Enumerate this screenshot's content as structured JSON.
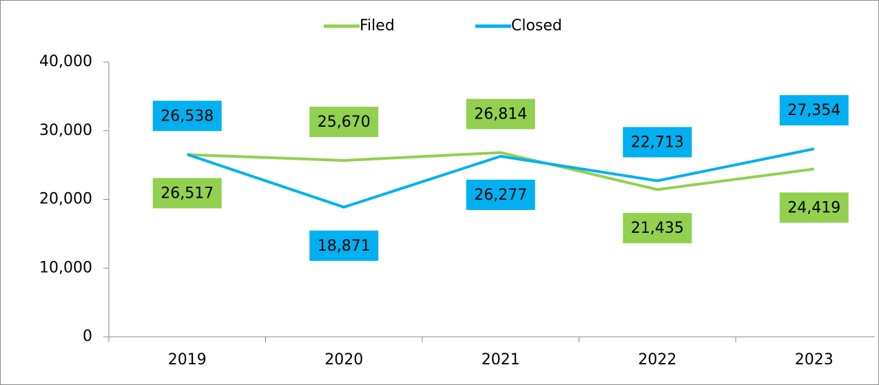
{
  "chart_data": {
    "type": "line",
    "categories": [
      "2019",
      "2020",
      "2021",
      "2022",
      "2023"
    ],
    "series": [
      {
        "name": "Filed",
        "color": "#92d050",
        "values": [
          26517,
          25670,
          26814,
          21435,
          24419
        ],
        "value_labels": [
          "26,517",
          "25,670",
          "26,814",
          "21,435",
          "24,419"
        ]
      },
      {
        "name": "Closed",
        "color": "#00b0f0",
        "values": [
          26538,
          18871,
          26277,
          22713,
          27354
        ],
        "value_labels": [
          "26,538",
          "18,871",
          "26,277",
          "22,713",
          "27,354"
        ]
      }
    ],
    "ylim": [
      0,
      40000
    ],
    "yticks": [
      0,
      {
        "value": 10000,
        "label": "10,000"
      },
      {
        "value": 20000,
        "label": "20,000"
      },
      {
        "value": 30000,
        "label": "30,000"
      },
      {
        "value": 40000,
        "label": "40,000"
      }
    ],
    "legend": "top"
  }
}
